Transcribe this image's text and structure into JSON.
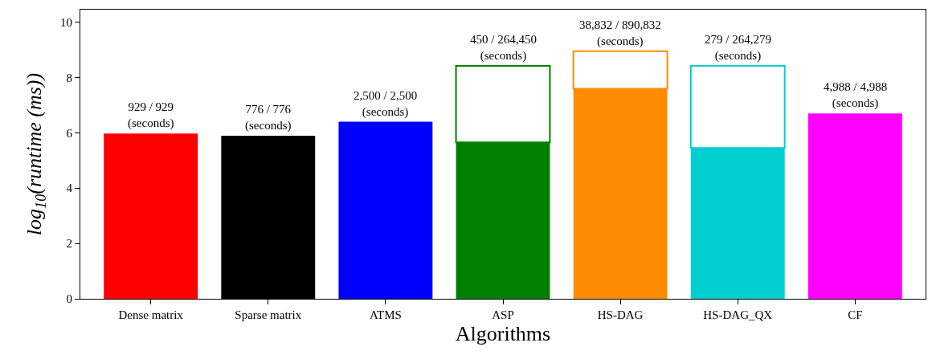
{
  "chart_data": {
    "type": "bar",
    "stacked": true,
    "xlabel": "Algorithms",
    "ylabel": "log$_{10}$(runtime (ms))",
    "categories": [
      "Dense matrix",
      "Sparse matrix",
      "ATMS",
      "ASP",
      "HS-DAG",
      "HS-DAG_QX",
      "CF"
    ],
    "series": [
      {
        "colors": [
          "#ff0000",
          "#000000",
          "#0000ff",
          "#008000",
          "#ff8c00",
          "#00ced1",
          "#ff00ff"
        ],
        "values": [
          5.97,
          5.89,
          6.4,
          5.65,
          7.59,
          5.45,
          6.7
        ]
      },
      {
        "colors": [
          "#ff0000",
          "#000000",
          "#0000ff",
          "#008000",
          "#ff8c00",
          "#00ced1",
          "#ff00ff"
        ],
        "values": [
          null,
          null,
          null,
          2.77,
          1.36,
          2.97,
          null
        ]
      }
    ],
    "totals": [
      "929 / 929\n(seconds)",
      "776 / 776\n(seconds)",
      "2,500 / 2,500\n(seconds)",
      "450 / 264,450\n(seconds)",
      "38,832 / 890,832\n(seconds)",
      "279 / 264,279\n(seconds)",
      "4,988 / 4,988\n(seconds)"
    ],
    "ylim": [
      0,
      10.45
    ],
    "yticks": [
      0,
      2,
      4,
      6,
      8,
      10
    ],
    "grid": false
  }
}
